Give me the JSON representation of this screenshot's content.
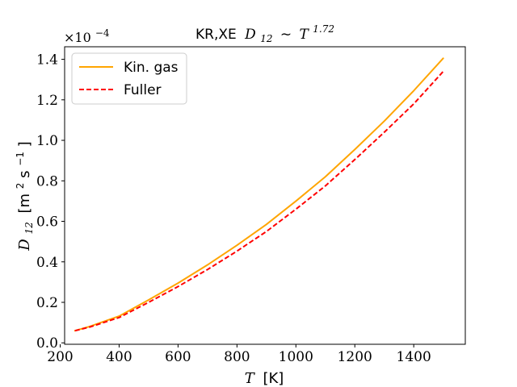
{
  "chart_data": {
    "type": "line",
    "title_prefix": "KR,XE",
    "title_math": "D",
    "title_sub": "12",
    "title_sim": "∼",
    "title_base": "T",
    "title_exp": "1.72",
    "xlabel_math": "T",
    "xlabel_unit": "[K]",
    "ylabel_math": "D",
    "ylabel_sub": "12",
    "ylabel_unit_open": "[m",
    "ylabel_unit_sup1": "2",
    "ylabel_unit_mid": "s",
    "ylabel_unit_sup2": "−1",
    "ylabel_unit_close": "]",
    "y_multiplier_base": "×10",
    "y_multiplier_exp": "−4",
    "xlim": [
      215,
      1575
    ],
    "ylim": [
      -0.007,
      1.462
    ],
    "xticks": [
      200,
      400,
      600,
      800,
      1000,
      1200,
      1400
    ],
    "xtick_labels": [
      "200",
      "400",
      "600",
      "800",
      "1000",
      "1200",
      "1400"
    ],
    "yticks": [
      0.0,
      0.2,
      0.4,
      0.6,
      0.8,
      1.0,
      1.2,
      1.4
    ],
    "ytick_labels": [
      "0.0",
      "0.2",
      "0.4",
      "0.6",
      "0.8",
      "1.0",
      "1.2",
      "1.4"
    ],
    "grid": false,
    "legend_position": "top-left",
    "series": [
      {
        "name": "Kin. gas",
        "color": "#ffa500",
        "style": "solid",
        "x": [
          250,
          300,
          400,
          500,
          600,
          700,
          800,
          900,
          1000,
          1100,
          1200,
          1300,
          1400,
          1500
        ],
        "y": [
          0.06,
          0.081,
          0.132,
          0.212,
          0.295,
          0.385,
          0.482,
          0.585,
          0.7,
          0.82,
          0.955,
          1.095,
          1.245,
          1.405
        ]
      },
      {
        "name": "Fuller",
        "color": "#ff0000",
        "style": "dashed",
        "x": [
          250,
          300,
          400,
          500,
          600,
          700,
          800,
          900,
          1000,
          1100,
          1200,
          1300,
          1400,
          1500
        ],
        "y": [
          0.06,
          0.078,
          0.125,
          0.2,
          0.278,
          0.362,
          0.453,
          0.55,
          0.66,
          0.775,
          0.905,
          1.04,
          1.18,
          1.34
        ]
      }
    ]
  }
}
